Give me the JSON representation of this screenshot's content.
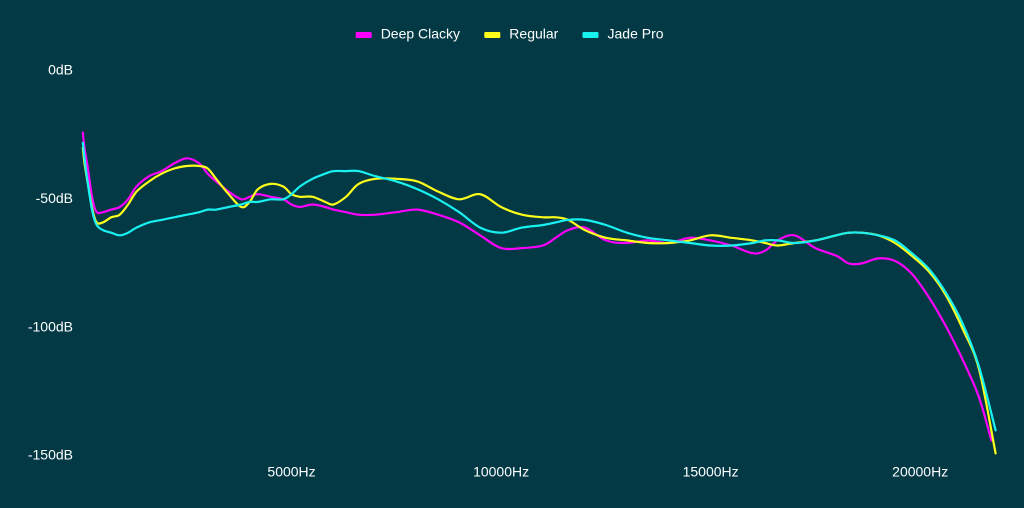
{
  "colors": {
    "background": "#023945",
    "text": "#ffffff"
  },
  "chart_data": {
    "type": "line",
    "title": "",
    "xlabel": "",
    "ylabel": "",
    "xlim": [
      0,
      22000
    ],
    "ylim": [
      -150,
      0
    ],
    "grid": false,
    "legend_position": "top-center",
    "x_ticks": [
      {
        "value": 5000,
        "label": "5000Hz"
      },
      {
        "value": 10000,
        "label": "10000Hz"
      },
      {
        "value": 15000,
        "label": "15000Hz"
      },
      {
        "value": 20000,
        "label": "20000Hz"
      }
    ],
    "y_ticks": [
      {
        "value": 0,
        "label": "0dB"
      },
      {
        "value": -50,
        "label": "-50dB"
      },
      {
        "value": -100,
        "label": "-100dB"
      },
      {
        "value": -150,
        "label": "-150dB"
      }
    ],
    "series": [
      {
        "name": "Deep Clacky",
        "color": "#ff00ff",
        "x": [
          20,
          60,
          140,
          250,
          350,
          500,
          700,
          900,
          1100,
          1300,
          1600,
          1900,
          2200,
          2500,
          2800,
          3000,
          3200,
          3500,
          3800,
          4000,
          4200,
          4500,
          4800,
          5000,
          5200,
          5500,
          5800,
          6000,
          6300,
          6600,
          7000,
          7500,
          8000,
          8500,
          9000,
          9500,
          10000,
          10500,
          11000,
          11300,
          11600,
          12000,
          12500,
          13000,
          13500,
          14000,
          14500,
          15000,
          15500,
          16000,
          16300,
          16600,
          17000,
          17500,
          18000,
          18300,
          18600,
          19000,
          19400,
          19800,
          20200,
          20600,
          21000,
          21400,
          21700
        ],
        "y": [
          -24,
          -30,
          -38,
          -50,
          -55,
          -55,
          -54,
          -53,
          -50,
          -45,
          -41,
          -39,
          -36,
          -34,
          -36,
          -40,
          -43,
          -47,
          -50,
          -49,
          -48,
          -49,
          -50,
          -52,
          -53,
          -52,
          -53,
          -54,
          -55,
          -56,
          -56,
          -55,
          -54,
          -56,
          -59,
          -64,
          -69,
          -69,
          -68,
          -65,
          -62,
          -61,
          -66,
          -67,
          -66,
          -67,
          -65,
          -66,
          -68,
          -71,
          -70,
          -66,
          -64,
          -69,
          -72,
          -75,
          -75,
          -73,
          -74,
          -79,
          -88,
          -99,
          -112,
          -127,
          -144
        ]
      },
      {
        "name": "Regular",
        "color": "#ffff1a",
        "x": [
          20,
          60,
          140,
          250,
          350,
          500,
          700,
          900,
          1100,
          1300,
          1600,
          1900,
          2200,
          2500,
          2800,
          3000,
          3200,
          3500,
          3800,
          4000,
          4200,
          4500,
          4800,
          5000,
          5200,
          5500,
          5800,
          6000,
          6300,
          6600,
          7000,
          7500,
          8000,
          8500,
          9000,
          9500,
          10000,
          10500,
          11000,
          11300,
          11600,
          12000,
          12500,
          13000,
          13500,
          14000,
          14500,
          15000,
          15500,
          16000,
          16300,
          16600,
          17000,
          17500,
          18000,
          18300,
          18600,
          19000,
          19400,
          19800,
          20200,
          20600,
          21000,
          21400,
          21800
        ],
        "y": [
          -30,
          -36,
          -44,
          -54,
          -59,
          -59,
          -57,
          -56,
          -52,
          -47,
          -43,
          -40,
          -38,
          -37,
          -37,
          -38,
          -42,
          -48,
          -53,
          -51,
          -46,
          -44,
          -45,
          -48,
          -49,
          -49,
          -51,
          -52,
          -49,
          -44,
          -42,
          -42,
          -43,
          -47,
          -50,
          -48,
          -53,
          -56,
          -57,
          -57,
          -58,
          -62,
          -65,
          -66,
          -67,
          -67,
          -66,
          -64,
          -65,
          -66,
          -67,
          -68,
          -67,
          -66,
          -64,
          -63,
          -63,
          -64,
          -67,
          -72,
          -78,
          -87,
          -100,
          -116,
          -149
        ]
      },
      {
        "name": "Jade Pro",
        "color": "#19f1f1",
        "x": [
          20,
          60,
          140,
          250,
          350,
          500,
          700,
          900,
          1100,
          1300,
          1600,
          1900,
          2200,
          2500,
          2800,
          3000,
          3200,
          3500,
          3800,
          4000,
          4200,
          4500,
          4800,
          5000,
          5200,
          5500,
          5800,
          6000,
          6300,
          6600,
          7000,
          7500,
          8000,
          8500,
          9000,
          9500,
          10000,
          10500,
          11000,
          11300,
          11600,
          12000,
          12500,
          13000,
          13500,
          14000,
          14500,
          15000,
          15500,
          16000,
          16300,
          16600,
          17000,
          17500,
          18000,
          18300,
          18600,
          19000,
          19400,
          19800,
          20200,
          20600,
          21000,
          21400,
          21800
        ],
        "y": [
          -28,
          -34,
          -44,
          -55,
          -60,
          -62,
          -63,
          -64,
          -63,
          -61,
          -59,
          -58,
          -57,
          -56,
          -55,
          -54,
          -54,
          -53,
          -52,
          -51,
          -51,
          -50,
          -50,
          -48,
          -45,
          -42,
          -40,
          -39,
          -39,
          -39,
          -41,
          -43,
          -46,
          -50,
          -55,
          -61,
          -63,
          -61,
          -60,
          -59,
          -58,
          -58,
          -60,
          -63,
          -65,
          -66,
          -67,
          -68,
          -68,
          -67,
          -66,
          -66,
          -67,
          -66,
          -64,
          -63,
          -63,
          -64,
          -66,
          -71,
          -77,
          -86,
          -98,
          -115,
          -140
        ]
      }
    ]
  }
}
